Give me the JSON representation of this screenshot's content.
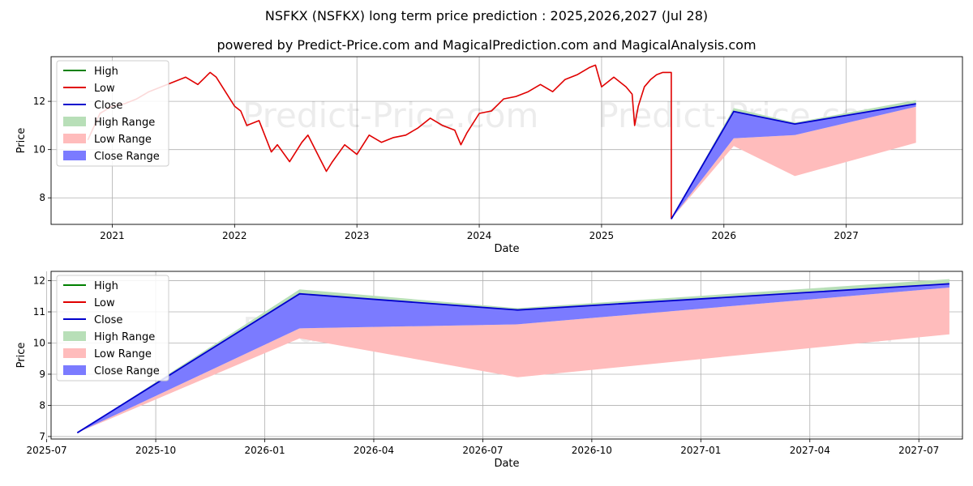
{
  "title": "NSFKX (NSFKX) long term price prediction : 2025,2026,2027 (Jul 28)",
  "subtitle": "powered by Predict-Price.com and MagicalPrediction.com and MagicalAnalysis.com",
  "watermark": "Predict-Price.com",
  "colors": {
    "high": "#008000",
    "low": "#e00000",
    "close": "#0000cc",
    "high_range": "#b8dfb8",
    "low_range": "#ffbcbc",
    "close_range": "#7b7bff"
  },
  "legend": [
    "High",
    "Low",
    "Close",
    "High Range",
    "Low Range",
    "Close Range"
  ],
  "chart_data": [
    {
      "type": "line",
      "name": "overview",
      "xlabel": "Date",
      "ylabel": "Price",
      "xlim": [
        2020.5,
        2027.95
      ],
      "ylim": [
        6.9,
        13.85
      ],
      "xticks": [
        2021,
        2022,
        2023,
        2024,
        2025,
        2026,
        2027
      ],
      "xtick_labels": [
        "2021",
        "2022",
        "2023",
        "2024",
        "2025",
        "2026",
        "2027"
      ],
      "yticks": [
        8,
        10,
        12
      ],
      "ytick_labels": [
        "8",
        "10",
        "12"
      ],
      "legend_position": "top-left",
      "history": {
        "name": "Low",
        "x": [
          2020.8,
          2020.9,
          2021.0,
          2021.1,
          2021.2,
          2021.3,
          2021.4,
          2021.5,
          2021.6,
          2021.7,
          2021.8,
          2021.85,
          2021.9,
          2022.0,
          2022.05,
          2022.1,
          2022.2,
          2022.3,
          2022.35,
          2022.45,
          2022.55,
          2022.6,
          2022.7,
          2022.75,
          2022.8,
          2022.9,
          2023.0,
          2023.1,
          2023.2,
          2023.3,
          2023.4,
          2023.5,
          2023.6,
          2023.7,
          2023.8,
          2023.85,
          2023.9,
          2024.0,
          2024.1,
          2024.2,
          2024.3,
          2024.4,
          2024.5,
          2024.6,
          2024.7,
          2024.8,
          2024.9,
          2024.95,
          2025.0,
          2025.05,
          2025.1,
          2025.2,
          2025.25,
          2025.27,
          2025.3,
          2025.35,
          2025.4,
          2025.45,
          2025.5,
          2025.55
        ],
        "y": [
          10.4,
          11.5,
          11.8,
          11.9,
          12.1,
          12.4,
          12.6,
          12.8,
          13.0,
          12.7,
          13.2,
          13.0,
          12.6,
          11.8,
          11.6,
          11.0,
          11.2,
          9.9,
          10.2,
          9.5,
          10.3,
          10.6,
          9.6,
          9.1,
          9.5,
          10.2,
          9.8,
          10.6,
          10.3,
          10.5,
          10.6,
          10.9,
          11.3,
          11.0,
          10.8,
          10.2,
          10.7,
          11.5,
          11.6,
          12.1,
          12.2,
          12.4,
          12.7,
          12.4,
          12.9,
          13.1,
          13.4,
          13.5,
          12.6,
          12.8,
          13.0,
          12.6,
          12.3,
          11.0,
          11.8,
          12.6,
          12.9,
          13.1,
          13.2,
          13.2
        ]
      },
      "forecast": {
        "x": [
          2025.57,
          2026.08,
          2026.58,
          2027.57
        ],
        "close": [
          7.12,
          11.58,
          11.06,
          11.9
        ],
        "high": [
          7.12,
          11.72,
          11.12,
          12.05
        ],
        "low": [
          7.12,
          10.15,
          8.9,
          10.28
        ],
        "close_range_low": [
          7.12,
          10.47,
          10.6,
          11.78
        ],
        "close_range_high": [
          7.12,
          11.58,
          11.06,
          11.9
        ]
      }
    },
    {
      "type": "line",
      "name": "forecast-zoom",
      "xlabel": "Date",
      "ylabel": "Price",
      "xlim": [
        2025.51,
        2027.6
      ],
      "ylim": [
        6.92,
        12.3
      ],
      "xticks": [
        2025.5,
        2025.75,
        2026.0,
        2026.25,
        2026.5,
        2026.75,
        2027.0,
        2027.25,
        2027.5
      ],
      "xtick_labels": [
        "2025-07",
        "2025-10",
        "2026-01",
        "2026-04",
        "2026-07",
        "2026-10",
        "2027-01",
        "2027-04",
        "2027-07"
      ],
      "yticks": [
        7,
        8,
        9,
        10,
        11,
        12
      ],
      "ytick_labels": [
        "7",
        "8",
        "9",
        "10",
        "11",
        "12"
      ],
      "legend_position": "top-left",
      "forecast": {
        "x": [
          2025.57,
          2026.08,
          2026.58,
          2027.57
        ],
        "close": [
          7.12,
          11.58,
          11.06,
          11.9
        ],
        "high": [
          7.12,
          11.72,
          11.12,
          12.05
        ],
        "low": [
          7.12,
          10.15,
          8.9,
          10.28
        ],
        "close_range_low": [
          7.12,
          10.47,
          10.6,
          11.78
        ],
        "close_range_high": [
          7.12,
          11.58,
          11.06,
          11.9
        ]
      }
    }
  ]
}
